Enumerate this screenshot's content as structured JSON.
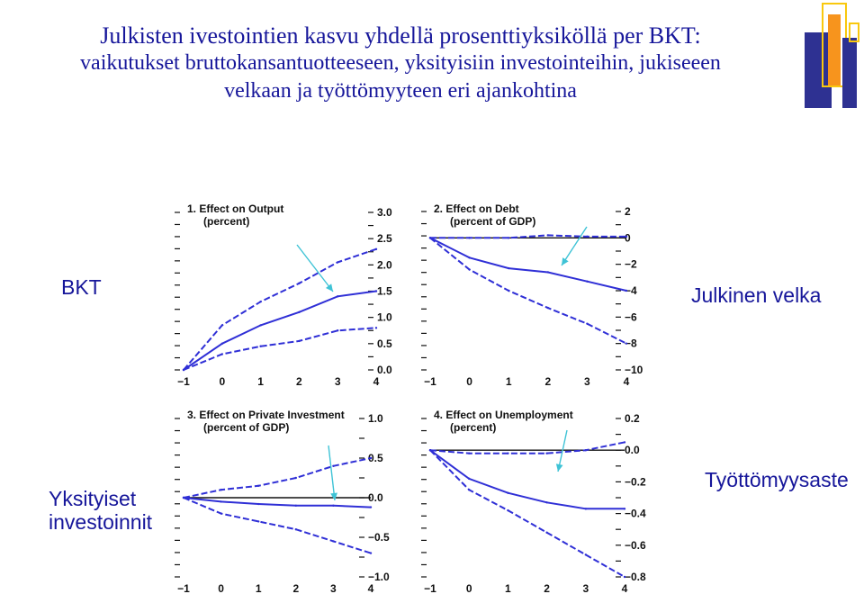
{
  "title": {
    "line1": "Julkisten ivestointien kasvu yhdellä prosenttiyksiköllä per BKT:",
    "line2": "vaikutukset bruttokansantuotteeseen, yksityisiin investointeihin, jukiseeen",
    "line3": "velkaan ja työttömyyteen eri ajankohtina"
  },
  "labels": {
    "top_left": "BKT",
    "top_right": "Julkinen velka",
    "bottom_left_1": "Yksityiset",
    "bottom_left_2": "investoinnit",
    "bottom_right": "Työttömyysaste"
  },
  "colors": {
    "title": "#16169a",
    "series_line": "#2f2fd6",
    "arrow": "#3fc3d6",
    "logo_blue": "#2e3192",
    "logo_orange": "#f7941d",
    "logo_yellow": "#f9c80e"
  },
  "chart_data": [
    {
      "type": "line",
      "title": "1. Effect on Output",
      "subtitle": "(percent)",
      "x": [
        -1,
        0,
        1,
        2,
        3,
        4
      ],
      "ylim": [
        0,
        3.0
      ],
      "yticks": [
        "3.0",
        "2.5",
        "2.0",
        "1.5",
        "1.0",
        "0.5",
        "0.0"
      ],
      "xticks": [
        "−1",
        "0",
        "1",
        "2",
        "3",
        "4"
      ],
      "series": [
        {
          "role": "upper",
          "values": [
            0.0,
            0.85,
            1.3,
            1.65,
            2.05,
            2.3
          ]
        },
        {
          "role": "mid",
          "values": [
            0.0,
            0.5,
            0.85,
            1.1,
            1.4,
            1.5
          ]
        },
        {
          "role": "lower",
          "values": [
            0.0,
            0.3,
            0.45,
            0.55,
            0.75,
            0.8
          ]
        }
      ]
    },
    {
      "type": "line",
      "title": "2. Effect on Debt",
      "subtitle": "(percent of GDP)",
      "x": [
        -1,
        0,
        1,
        2,
        3,
        4
      ],
      "ylim": [
        -10,
        2
      ],
      "yticks": [
        "2",
        "0",
        "−2",
        "−4",
        "−6",
        "−8",
        "−10"
      ],
      "xticks": [
        "−1",
        "0",
        "1",
        "2",
        "3",
        "4"
      ],
      "zero_line": true,
      "series": [
        {
          "role": "upper",
          "values": [
            0.0,
            0.0,
            0.0,
            0.2,
            0.1,
            0.1
          ]
        },
        {
          "role": "mid",
          "values": [
            0.0,
            -1.5,
            -2.3,
            -2.6,
            -3.3,
            -4.0
          ]
        },
        {
          "role": "lower",
          "values": [
            0.0,
            -2.4,
            -4.0,
            -5.3,
            -6.5,
            -8.0
          ]
        }
      ]
    },
    {
      "type": "line",
      "title": "3. Effect on Private Investment",
      "subtitle": "(percent of GDP)",
      "x": [
        -1,
        0,
        1,
        2,
        3,
        4
      ],
      "ylim": [
        -1.0,
        1.0
      ],
      "yticks": [
        "1.0",
        "0.5",
        "0.0",
        "−0.5",
        "−1.0"
      ],
      "xticks": [
        "−1",
        "0",
        "1",
        "2",
        "3",
        "4"
      ],
      "zero_line": true,
      "series": [
        {
          "role": "upper",
          "values": [
            0.0,
            0.1,
            0.15,
            0.25,
            0.4,
            0.5
          ]
        },
        {
          "role": "mid",
          "values": [
            0.0,
            -0.05,
            -0.08,
            -0.1,
            -0.1,
            -0.12
          ]
        },
        {
          "role": "lower",
          "values": [
            0.0,
            -0.2,
            -0.3,
            -0.4,
            -0.55,
            -0.7
          ]
        }
      ]
    },
    {
      "type": "line",
      "title": "4. Effect on Unemployment",
      "subtitle": "(percent)",
      "x": [
        -1,
        0,
        1,
        2,
        3,
        4
      ],
      "ylim": [
        -0.8,
        0.2
      ],
      "yticks": [
        "0.2",
        "0.0",
        "−0.2",
        "−0.4",
        "−0.6",
        "−0.8"
      ],
      "xticks": [
        "−1",
        "0",
        "1",
        "2",
        "3",
        "4"
      ],
      "zero_line": true,
      "series": [
        {
          "role": "upper",
          "values": [
            0.0,
            -0.02,
            -0.02,
            -0.02,
            0.0,
            0.05
          ]
        },
        {
          "role": "mid",
          "values": [
            0.0,
            -0.18,
            -0.27,
            -0.33,
            -0.37,
            -0.37
          ]
        },
        {
          "role": "lower",
          "values": [
            0.0,
            -0.25,
            -0.38,
            -0.52,
            -0.66,
            -0.8
          ]
        }
      ]
    }
  ]
}
